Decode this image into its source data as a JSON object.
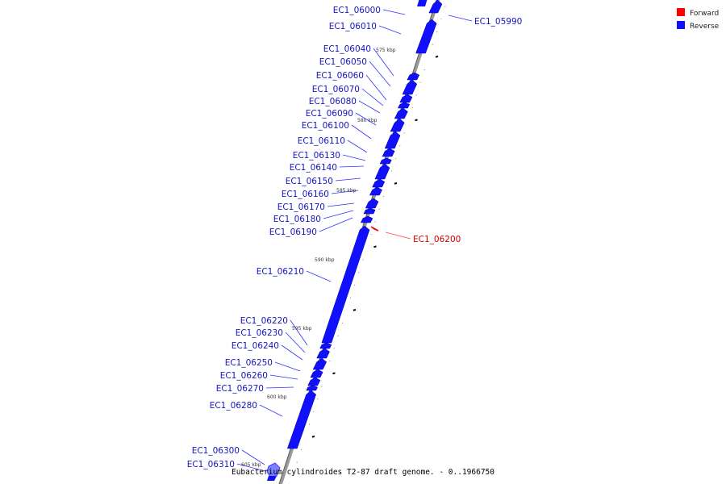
{
  "legend": [
    {
      "label": "Forward",
      "color": "#ff0000"
    },
    {
      "label": "Reverse",
      "color": "#1010ff"
    }
  ],
  "caption": "Eubacterium cylindroides T2-87 draft genome. - 0..1966750",
  "ticks": [
    "575 kbp",
    "580 kbp",
    "585 kbp",
    "590 kbp",
    "595 kbp",
    "600 kbp",
    "605 kbp"
  ],
  "genes": [
    {
      "name": "EC1_05990",
      "strand": "reverse"
    },
    {
      "name": "EC1_06000",
      "strand": "reverse"
    },
    {
      "name": "EC1_06010",
      "strand": "reverse"
    },
    {
      "name": "EC1_06040",
      "strand": "reverse"
    },
    {
      "name": "EC1_06050",
      "strand": "reverse"
    },
    {
      "name": "EC1_06060",
      "strand": "reverse"
    },
    {
      "name": "EC1_06070",
      "strand": "reverse"
    },
    {
      "name": "EC1_06080",
      "strand": "reverse"
    },
    {
      "name": "EC1_06090",
      "strand": "reverse"
    },
    {
      "name": "EC1_06100",
      "strand": "reverse"
    },
    {
      "name": "EC1_06110",
      "strand": "reverse"
    },
    {
      "name": "EC1_06130",
      "strand": "reverse"
    },
    {
      "name": "EC1_06140",
      "strand": "reverse"
    },
    {
      "name": "EC1_06150",
      "strand": "reverse"
    },
    {
      "name": "EC1_06160",
      "strand": "reverse"
    },
    {
      "name": "EC1_06170",
      "strand": "reverse"
    },
    {
      "name": "EC1_06180",
      "strand": "reverse"
    },
    {
      "name": "EC1_06190",
      "strand": "reverse"
    },
    {
      "name": "EC1_06200",
      "strand": "forward"
    },
    {
      "name": "EC1_06210",
      "strand": "reverse"
    },
    {
      "name": "EC1_06220",
      "strand": "reverse"
    },
    {
      "name": "EC1_06230",
      "strand": "reverse"
    },
    {
      "name": "EC1_06240",
      "strand": "reverse"
    },
    {
      "name": "EC1_06250",
      "strand": "reverse"
    },
    {
      "name": "EC1_06260",
      "strand": "reverse"
    },
    {
      "name": "EC1_06270",
      "strand": "reverse"
    },
    {
      "name": "EC1_06280",
      "strand": "reverse"
    },
    {
      "name": "EC1_06300",
      "strand": "reverse"
    },
    {
      "name": "EC1_06310",
      "strand": "reverse"
    }
  ]
}
